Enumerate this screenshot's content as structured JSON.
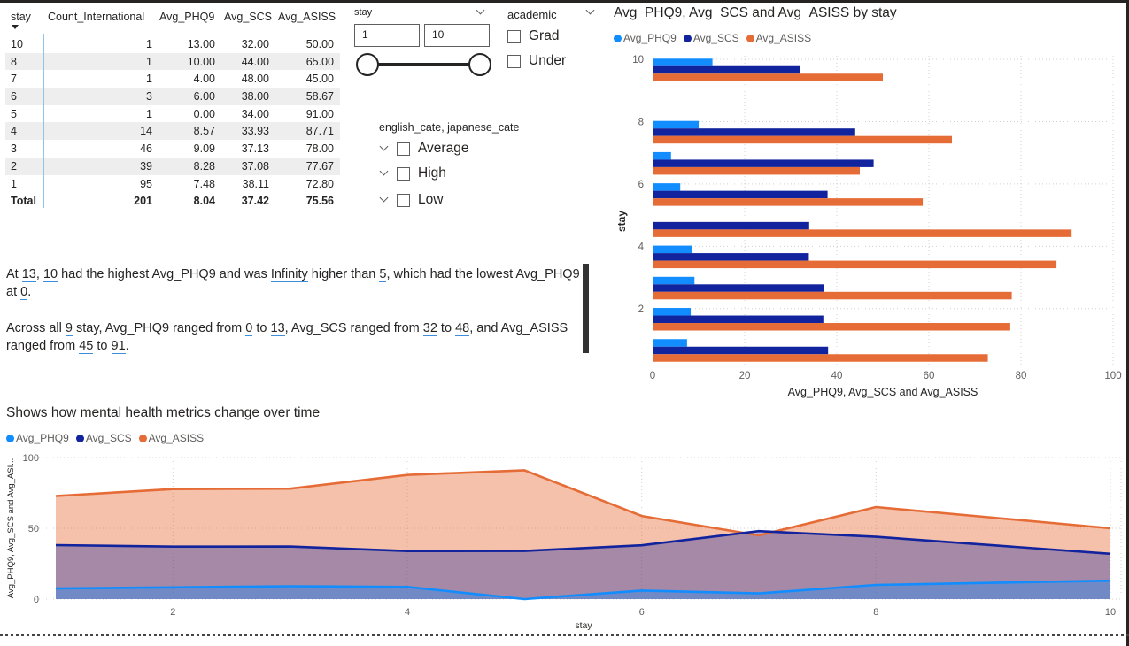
{
  "table": {
    "columns": [
      "stay",
      "Count_International",
      "Avg_PHQ9",
      "Avg_SCS",
      "Avg_ASISS"
    ],
    "rows": [
      [
        "10",
        "1",
        "13.00",
        "32.00",
        "50.00"
      ],
      [
        "8",
        "1",
        "10.00",
        "44.00",
        "65.00"
      ],
      [
        "7",
        "1",
        "4.00",
        "48.00",
        "45.00"
      ],
      [
        "6",
        "3",
        "6.00",
        "38.00",
        "58.67"
      ],
      [
        "5",
        "1",
        "0.00",
        "34.00",
        "91.00"
      ],
      [
        "4",
        "14",
        "8.57",
        "33.93",
        "87.71"
      ],
      [
        "3",
        "46",
        "9.09",
        "37.13",
        "78.00"
      ],
      [
        "2",
        "39",
        "8.28",
        "37.08",
        "77.67"
      ],
      [
        "1",
        "95",
        "7.48",
        "38.11",
        "72.80"
      ]
    ],
    "total": [
      "Total",
      "201",
      "8.04",
      "37.42",
      "75.56"
    ]
  },
  "stay_slicer": {
    "title": "stay",
    "min_value": "1",
    "max_value": "10"
  },
  "academic_slicer": {
    "title": "academic",
    "options": [
      "Grad",
      "Under"
    ]
  },
  "cate_slicer": {
    "title": "english_cate, japanese_cate",
    "options": [
      "Average",
      "High",
      "Low"
    ]
  },
  "narrative": {
    "p1": {
      "t1": "At ",
      "v1": "13",
      "t2": ", ",
      "v2": "10",
      "t3": " had the highest Avg_PHQ9 and was ",
      "v3": "Infinity",
      "t4": " higher than ",
      "v4": "5",
      "t5": ", which had the lowest Avg_PHQ9 at ",
      "v5": "0",
      "t6": "."
    },
    "p2": {
      "t1": "Across all ",
      "v1": "9",
      "t2": " stay, Avg_PHQ9 ranged from ",
      "v2": "0",
      "t3": " to ",
      "v3": "13",
      "t4": ", Avg_SCS ranged from ",
      "v4": "32",
      "t5": " to ",
      "v5": "48",
      "t6": ", and Avg_ASISS ranged from ",
      "v6": "45",
      "t7": " to ",
      "v7": "91",
      "t8": "."
    }
  },
  "colors": {
    "phq9": "#118dff",
    "scs": "#12239e",
    "asiss": "#e66c37"
  },
  "chart_data": [
    {
      "type": "bar",
      "orientation": "horizontal",
      "title": "Avg_PHQ9, Avg_SCS and Avg_ASISS by stay",
      "xlabel": "Avg_PHQ9, Avg_SCS and Avg_ASISS",
      "ylabel": "stay",
      "xlim": [
        0,
        100
      ],
      "xticks": [
        0,
        20,
        40,
        60,
        80,
        100
      ],
      "yticks": [
        2,
        4,
        6,
        8,
        10
      ],
      "legend": "top-left",
      "categories": [
        10,
        8,
        7,
        6,
        5,
        4,
        3,
        2,
        1
      ],
      "series": [
        {
          "name": "Avg_PHQ9",
          "values": [
            13.0,
            10.0,
            4.0,
            6.0,
            0.0,
            8.57,
            9.09,
            8.28,
            7.48
          ]
        },
        {
          "name": "Avg_SCS",
          "values": [
            32.0,
            44.0,
            48.0,
            38.0,
            34.0,
            33.93,
            37.13,
            37.08,
            38.11
          ]
        },
        {
          "name": "Avg_ASISS",
          "values": [
            50.0,
            65.0,
            45.0,
            58.67,
            91.0,
            87.71,
            78.0,
            77.67,
            72.8
          ]
        }
      ]
    },
    {
      "type": "area",
      "title": "Shows how mental health metrics change over time",
      "xlabel": "stay",
      "ylabel": "Avg_PHQ9, Avg_SCS and Avg_ASI...",
      "ylim": [
        0,
        100
      ],
      "xlim": [
        1,
        10
      ],
      "xticks": [
        2,
        4,
        6,
        8,
        10
      ],
      "yticks": [
        0,
        50,
        100
      ],
      "legend": "top-left",
      "x": [
        1,
        2,
        3,
        4,
        5,
        6,
        7,
        8,
        9,
        10
      ],
      "series": [
        {
          "name": "Avg_PHQ9",
          "values": [
            7.48,
            8.28,
            9.09,
            8.57,
            0.0,
            6.0,
            4.0,
            10.0,
            11.5,
            13.0
          ]
        },
        {
          "name": "Avg_SCS",
          "values": [
            38.11,
            37.08,
            37.13,
            33.93,
            34.0,
            38.0,
            48.0,
            44.0,
            38.0,
            32.0
          ]
        },
        {
          "name": "Avg_ASISS",
          "values": [
            72.8,
            77.67,
            78.0,
            87.71,
            91.0,
            58.67,
            45.0,
            65.0,
            57.5,
            50.0
          ]
        }
      ]
    }
  ]
}
